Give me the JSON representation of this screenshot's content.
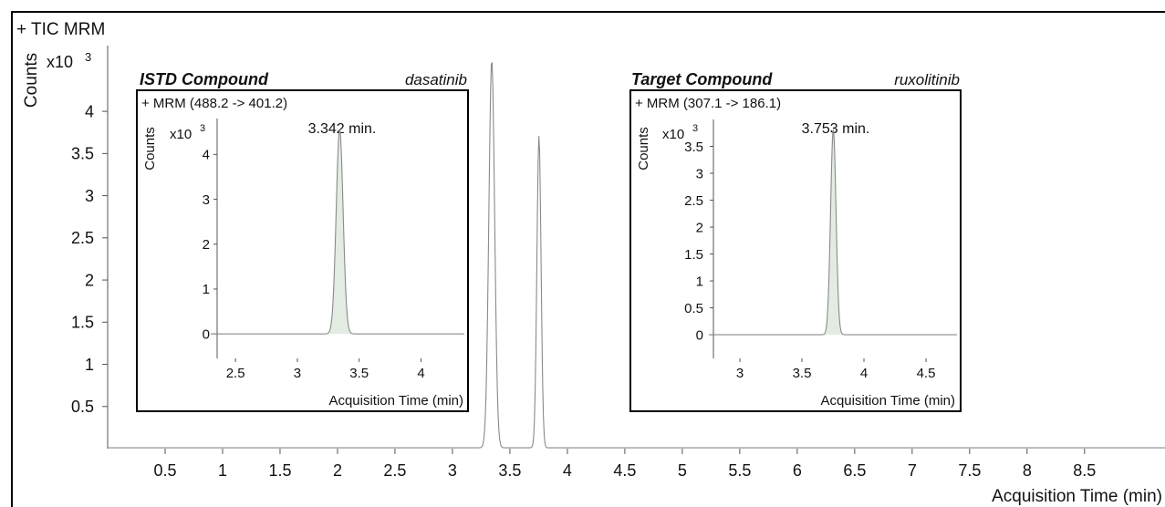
{
  "main": {
    "trace_label": "+ TIC MRM",
    "ylabel": "Counts",
    "exponent_base": "x10",
    "exponent_power": "3",
    "xlabel": "Acquisition Time (min)"
  },
  "insets": [
    {
      "heading": "ISTD Compound",
      "compound": "dasatinib",
      "transition": "+ MRM (488.2 -> 401.2)",
      "ylabel": "Counts",
      "exponent_base": "x10",
      "exponent_power": "3",
      "peak_label": "3.342 min.",
      "xlabel": "Acquisition Time (min)"
    },
    {
      "heading": "Target Compound",
      "compound": "ruxolitinib",
      "transition": "+ MRM (307.1 -> 186.1)",
      "ylabel": "Counts",
      "exponent_base": "x10",
      "exponent_power": "3",
      "peak_label": "3.753 min.",
      "xlabel": "Acquisition Time (min)"
    }
  ],
  "colors": {
    "trace": "#8a8a8a",
    "peak_fill": "#e3ece3",
    "axis": "#555555"
  },
  "chart_data": [
    {
      "type": "line",
      "title": "+ TIC MRM",
      "xlabel": "Acquisition Time (min)",
      "ylabel": "Counts",
      "y_unit": "x10^3",
      "xlim": [
        0.0,
        9.2
      ],
      "ylim": [
        0,
        4.78
      ],
      "xticks": [
        0.5,
        1,
        1.5,
        2,
        2.5,
        3,
        3.5,
        4,
        4.5,
        5,
        5.5,
        6,
        6.5,
        7,
        7.5,
        8,
        8.5
      ],
      "yticks": [
        0.5,
        1,
        1.5,
        2,
        2.5,
        3,
        3.5,
        4
      ],
      "baseline": 0.01,
      "peaks": [
        {
          "rt": 3.342,
          "height": 4.6,
          "sigma": 0.025
        },
        {
          "rt": 3.753,
          "height": 3.7,
          "sigma": 0.018
        }
      ],
      "grid": false
    },
    {
      "type": "area",
      "title": "+ MRM (488.2 -> 401.2)",
      "xlabel": "Acquisition Time (min)",
      "ylabel": "Counts",
      "y_unit": "x10^3",
      "xlim": [
        2.3,
        4.35
      ],
      "ylim": [
        -0.2,
        4.8
      ],
      "xticks": [
        2.5,
        3,
        3.5,
        4
      ],
      "yticks": [
        0,
        1,
        2,
        3,
        4
      ],
      "baseline": 0.0,
      "peaks": [
        {
          "rt": 3.342,
          "height": 4.55,
          "sigma": 0.028
        }
      ],
      "annotation": "3.342 min."
    },
    {
      "type": "area",
      "title": "+ MRM (307.1 -> 186.1)",
      "xlabel": "Acquisition Time (min)",
      "ylabel": "Counts",
      "y_unit": "x10^3",
      "xlim": [
        2.75,
        4.75
      ],
      "ylim": [
        -0.1,
        4.0
      ],
      "xticks": [
        3,
        3.5,
        4,
        4.5
      ],
      "yticks": [
        0,
        0.5,
        1,
        1.5,
        2,
        2.5,
        3,
        3.5
      ],
      "baseline": 0.0,
      "peaks": [
        {
          "rt": 3.753,
          "height": 3.8,
          "sigma": 0.022
        }
      ],
      "annotation": "3.753 min."
    }
  ]
}
